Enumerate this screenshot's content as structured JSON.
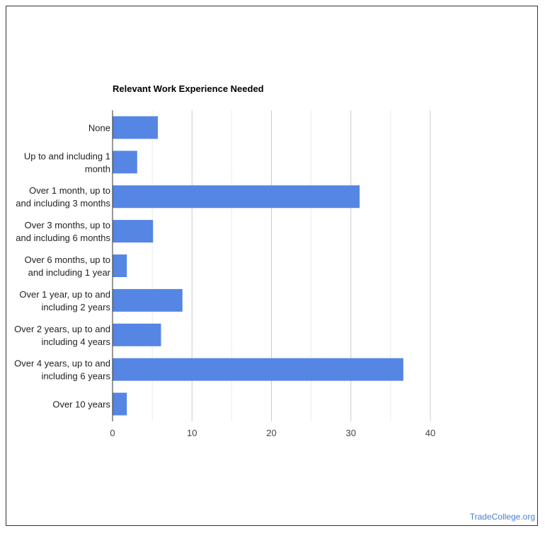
{
  "chart_data": {
    "type": "bar",
    "orientation": "horizontal",
    "title": "Relevant Work Experience Needed",
    "categories": [
      [
        "None"
      ],
      [
        "Up to and including 1",
        "month"
      ],
      [
        "Over 1 month, up to",
        "and including 3 months"
      ],
      [
        "Over 3 months, up to",
        "and including 6 months"
      ],
      [
        "Over 6 months, up to",
        "and including 1 year"
      ],
      [
        "Over 1 year, up to and",
        "including 2 years"
      ],
      [
        "Over 2 years, up to and",
        "including 4 years"
      ],
      [
        "Over 4 years, up to and",
        "including 6 years"
      ],
      [
        "Over 10 years"
      ]
    ],
    "values": [
      5.7,
      3.1,
      31.1,
      5.1,
      1.8,
      8.8,
      6.1,
      36.6,
      1.8
    ],
    "xlim": [
      0,
      40
    ],
    "xticks": [
      0,
      10,
      20,
      30,
      40
    ],
    "bar_color": "#5586e4",
    "grid": true
  },
  "watermark": "TradeCollege.org"
}
